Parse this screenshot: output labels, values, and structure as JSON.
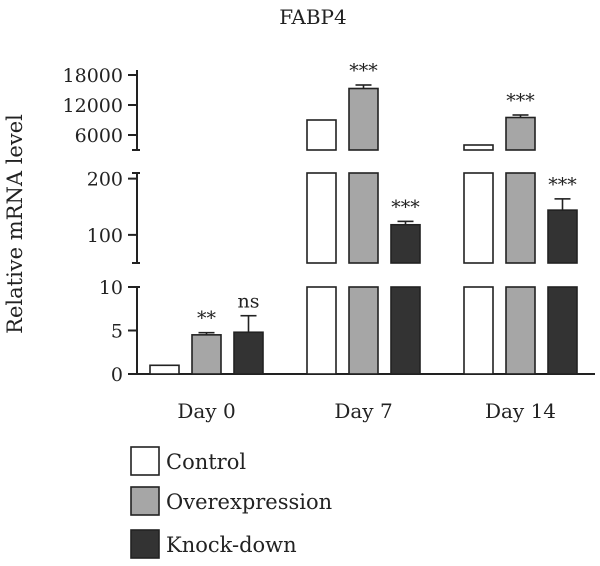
{
  "chart_data": {
    "type": "bar",
    "title": "FABP4",
    "xlabel": "",
    "ylabel": "Relative mRNA level",
    "categories": [
      "Day 0",
      "Day 7",
      "Day 14"
    ],
    "axis_breaks": true,
    "y_segments": [
      {
        "ylim": [
          0,
          10
        ],
        "ticks": [
          0,
          5,
          10
        ],
        "tick_labels": [
          "0",
          "5",
          "10"
        ]
      },
      {
        "ylim": [
          50,
          210
        ],
        "ticks": [
          100,
          200
        ],
        "tick_labels": [
          "100",
          "200"
        ]
      },
      {
        "ylim": [
          3000,
          19000
        ],
        "ticks": [
          6000,
          12000,
          18000
        ],
        "tick_labels": [
          "6000",
          "12000",
          "18000"
        ]
      }
    ],
    "series": [
      {
        "name": "Control",
        "color": "#ffffff",
        "values": [
          1,
          9000,
          4000
        ],
        "errors": [
          0,
          0,
          0
        ],
        "significance": [
          "",
          "",
          ""
        ]
      },
      {
        "name": "Overexpression",
        "color": "#a6a6a6",
        "values": [
          4.5,
          15300,
          9500
        ],
        "errors": [
          0.25,
          700,
          500
        ],
        "significance": [
          "**",
          "***",
          "***"
        ]
      },
      {
        "name": "Knock-down",
        "color": "#333333",
        "values": [
          4.8,
          118,
          144
        ],
        "errors": [
          1.9,
          6,
          20
        ],
        "significance": [
          "ns",
          "***",
          "***"
        ]
      }
    ],
    "legend_position": "bottom-left",
    "grid": false
  }
}
